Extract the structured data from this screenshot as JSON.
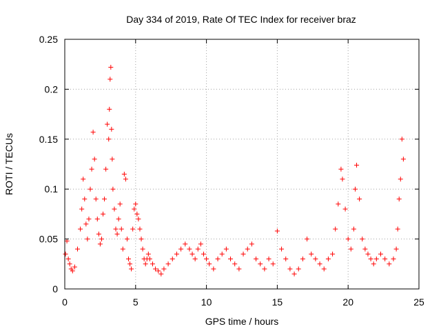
{
  "chart_data": {
    "type": "scatter",
    "title": "Day 334 of 2019, Rate Of TEC Index for receiver braz",
    "xlabel": "GPS time / hours",
    "ylabel": "ROTI / TECUs",
    "xlim": [
      0,
      25
    ],
    "ylim": [
      0,
      0.25
    ],
    "xticks": [
      0,
      5,
      10,
      15,
      20,
      25
    ],
    "xtick_labels": [
      "0",
      "5",
      "10",
      "15",
      "20",
      "25"
    ],
    "yticks": [
      0,
      0.05,
      0.1,
      0.15,
      0.2,
      0.25
    ],
    "ytick_labels": [
      "0",
      "0.05",
      "0.1",
      "0.15",
      "0.2",
      "0.25"
    ],
    "grid": true,
    "marker": "+",
    "color": "#ff0000",
    "series": [
      {
        "name": "ROTI",
        "x": [
          0.05,
          0.15,
          0.25,
          0.35,
          0.45,
          0.55,
          0.7,
          0.9,
          1.1,
          1.2,
          1.3,
          1.4,
          1.5,
          1.6,
          1.7,
          1.8,
          1.9,
          2.0,
          2.1,
          2.2,
          2.3,
          2.4,
          2.5,
          2.6,
          2.7,
          2.8,
          2.9,
          3.0,
          3.1,
          3.15,
          3.2,
          3.25,
          3.3,
          3.35,
          3.4,
          3.5,
          3.6,
          3.7,
          3.8,
          3.9,
          4.0,
          4.1,
          4.2,
          4.3,
          4.4,
          4.5,
          4.6,
          4.7,
          4.8,
          4.9,
          5.0,
          5.1,
          5.2,
          5.3,
          5.4,
          5.5,
          5.6,
          5.7,
          5.8,
          5.9,
          6.0,
          6.2,
          6.4,
          6.6,
          6.8,
          7.0,
          7.3,
          7.6,
          7.9,
          8.2,
          8.5,
          8.8,
          9.0,
          9.2,
          9.4,
          9.6,
          9.8,
          10.0,
          10.2,
          10.5,
          10.8,
          11.1,
          11.4,
          11.7,
          12.0,
          12.3,
          12.6,
          12.9,
          13.2,
          13.5,
          13.8,
          14.1,
          14.4,
          14.7,
          15.0,
          15.3,
          15.6,
          15.9,
          16.2,
          16.5,
          16.8,
          17.1,
          17.4,
          17.7,
          18.0,
          18.3,
          18.6,
          18.9,
          19.1,
          19.3,
          19.5,
          19.6,
          19.8,
          20.0,
          20.2,
          20.4,
          20.5,
          20.6,
          20.8,
          21.0,
          21.2,
          21.4,
          21.6,
          21.8,
          22.0,
          22.3,
          22.6,
          22.9,
          23.2,
          23.4,
          23.5,
          23.6,
          23.7,
          23.8,
          23.9
        ],
        "y": [
          0.035,
          0.048,
          0.03,
          0.025,
          0.02,
          0.018,
          0.022,
          0.04,
          0.06,
          0.08,
          0.11,
          0.09,
          0.065,
          0.05,
          0.07,
          0.1,
          0.12,
          0.157,
          0.13,
          0.09,
          0.07,
          0.055,
          0.045,
          0.05,
          0.075,
          0.09,
          0.12,
          0.165,
          0.15,
          0.18,
          0.21,
          0.222,
          0.16,
          0.13,
          0.1,
          0.08,
          0.06,
          0.055,
          0.07,
          0.085,
          0.06,
          0.04,
          0.115,
          0.11,
          0.05,
          0.03,
          0.025,
          0.02,
          0.06,
          0.08,
          0.085,
          0.075,
          0.07,
          0.06,
          0.05,
          0.04,
          0.03,
          0.025,
          0.03,
          0.035,
          0.03,
          0.025,
          0.02,
          0.018,
          0.015,
          0.02,
          0.025,
          0.03,
          0.035,
          0.04,
          0.045,
          0.04,
          0.035,
          0.03,
          0.04,
          0.045,
          0.035,
          0.03,
          0.025,
          0.02,
          0.03,
          0.035,
          0.04,
          0.03,
          0.025,
          0.02,
          0.035,
          0.04,
          0.045,
          0.03,
          0.025,
          0.02,
          0.03,
          0.025,
          0.058,
          0.04,
          0.03,
          0.02,
          0.015,
          0.02,
          0.03,
          0.05,
          0.035,
          0.03,
          0.025,
          0.02,
          0.03,
          0.035,
          0.06,
          0.085,
          0.12,
          0.11,
          0.08,
          0.05,
          0.04,
          0.06,
          0.1,
          0.124,
          0.09,
          0.05,
          0.04,
          0.035,
          0.03,
          0.025,
          0.03,
          0.035,
          0.03,
          0.025,
          0.03,
          0.04,
          0.06,
          0.09,
          0.11,
          0.15,
          0.13
        ]
      }
    ]
  }
}
